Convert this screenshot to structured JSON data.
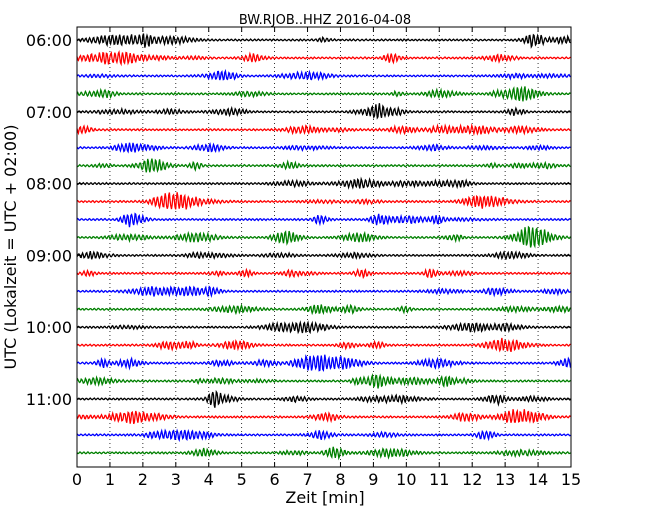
{
  "chart_data": {
    "type": "line",
    "title": "BW.RJOB..HHZ 2016-04-08",
    "xlabel": "Zeit  [min]",
    "ylabel": "UTC (Lokalzeit = UTC + 02:00)",
    "xlim": [
      0,
      15
    ],
    "x_ticks": [
      "0",
      "1",
      "2",
      "3",
      "4",
      "5",
      "6",
      "7",
      "8",
      "9",
      "10",
      "11",
      "12",
      "13",
      "14",
      "15"
    ],
    "y_ticks": [
      "06:00",
      "07:00",
      "08:00",
      "09:00",
      "10:00",
      "11:00"
    ],
    "grid": "vertical dotted lines at each minute",
    "trace_colors": [
      "#000000",
      "#ff0000",
      "#0000ff",
      "#008000"
    ],
    "trace_count": 24,
    "trace_interval_minutes": 15,
    "first_trace_start": "06:00",
    "series": [
      {
        "start": "06:00",
        "color": "black"
      },
      {
        "start": "06:15",
        "color": "red"
      },
      {
        "start": "06:30",
        "color": "blue"
      },
      {
        "start": "06:45",
        "color": "green"
      },
      {
        "start": "07:00",
        "color": "black"
      },
      {
        "start": "07:15",
        "color": "red"
      },
      {
        "start": "07:30",
        "color": "blue"
      },
      {
        "start": "07:45",
        "color": "green"
      },
      {
        "start": "08:00",
        "color": "black"
      },
      {
        "start": "08:15",
        "color": "red"
      },
      {
        "start": "08:30",
        "color": "blue"
      },
      {
        "start": "08:45",
        "color": "green"
      },
      {
        "start": "09:00",
        "color": "black"
      },
      {
        "start": "09:15",
        "color": "red"
      },
      {
        "start": "09:30",
        "color": "blue"
      },
      {
        "start": "09:45",
        "color": "green"
      },
      {
        "start": "10:00",
        "color": "black"
      },
      {
        "start": "10:15",
        "color": "red"
      },
      {
        "start": "10:30",
        "color": "blue"
      },
      {
        "start": "10:45",
        "color": "green"
      },
      {
        "start": "11:00",
        "color": "black"
      },
      {
        "start": "11:15",
        "color": "red"
      },
      {
        "start": "11:30",
        "color": "blue"
      },
      {
        "start": "11:45",
        "color": "green"
      }
    ]
  }
}
